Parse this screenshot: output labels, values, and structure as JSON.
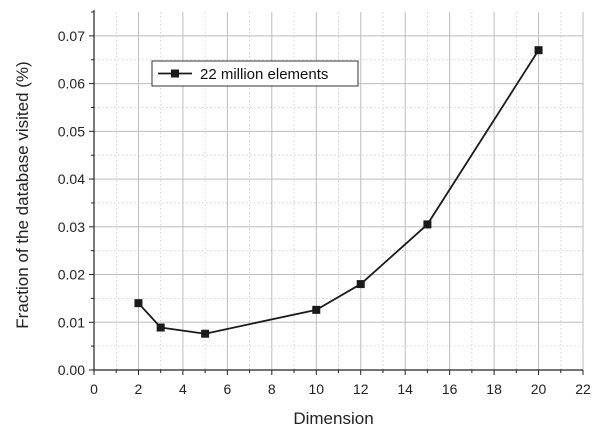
{
  "chart_data": {
    "type": "line",
    "title": "",
    "xlabel": "Dimension",
    "ylabel": "Fraction of the database visited (%)",
    "xlim": [
      0,
      22
    ],
    "ylim": [
      0,
      0.075
    ],
    "x_ticks": [
      "0",
      "2",
      "4",
      "6",
      "8",
      "10",
      "12",
      "14",
      "16",
      "18",
      "20",
      "22"
    ],
    "y_ticks": [
      "0.00",
      "0.01",
      "0.02",
      "0.03",
      "0.04",
      "0.05",
      "0.06",
      "0.07"
    ],
    "grid": true,
    "legend_position": "top-left",
    "series": [
      {
        "name": "22 million elements",
        "color": "#1a1a1a",
        "marker": "square",
        "x": [
          2,
          3,
          5,
          10,
          12,
          15,
          20
        ],
        "y": [
          0.014,
          0.0089,
          0.0076,
          0.0126,
          0.018,
          0.0305,
          0.067
        ]
      }
    ]
  }
}
